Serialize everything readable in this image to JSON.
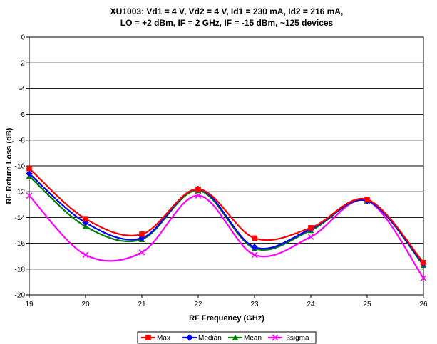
{
  "chart_data": {
    "type": "line",
    "title_line1": "XU1003: Vd1 = 4 V, Vd2 = 4 V, Id1 = 230 mA, Id2 = 216 mA,",
    "title_line2": "LO = +2 dBm, IF = 2 GHz, IF = -15 dBm, ~125 devices",
    "xlabel": "RF Frequency (GHz)",
    "ylabel": "RF Return Loss (dB)",
    "xlim": [
      19,
      26
    ],
    "ylim": [
      -20,
      0
    ],
    "x_ticks": [
      "19",
      "20",
      "21",
      "22",
      "23",
      "24",
      "25",
      "26"
    ],
    "y_ticks": [
      "0",
      "-2",
      "-4",
      "-6",
      "-8",
      "-10",
      "-12",
      "-14",
      "-16",
      "-18",
      "-20"
    ],
    "grid": "horizontal",
    "legend_position": "bottom",
    "x": [
      19,
      20,
      21,
      22,
      23,
      24,
      25,
      26
    ],
    "series": [
      {
        "name": "Max",
        "color": "#ff0000",
        "marker": "square",
        "values": [
          -10.2,
          -14.1,
          -15.3,
          -11.8,
          -15.6,
          -14.8,
          -12.6,
          -17.5
        ]
      },
      {
        "name": "Median",
        "color": "#0000ff",
        "marker": "diamond",
        "values": [
          -10.6,
          -14.4,
          -15.6,
          -11.8,
          -16.3,
          -14.9,
          -12.7,
          -17.6
        ]
      },
      {
        "name": "Mean",
        "color": "#008000",
        "marker": "triangle",
        "values": [
          -10.8,
          -14.7,
          -15.7,
          -11.9,
          -16.4,
          -15.0,
          -12.7,
          -17.7
        ]
      },
      {
        "name": "-3sigma",
        "color": "#ff00ff",
        "marker": "x",
        "values": [
          -12.3,
          -16.9,
          -16.7,
          -12.3,
          -16.9,
          -15.5,
          -12.7,
          -18.7
        ]
      }
    ]
  }
}
